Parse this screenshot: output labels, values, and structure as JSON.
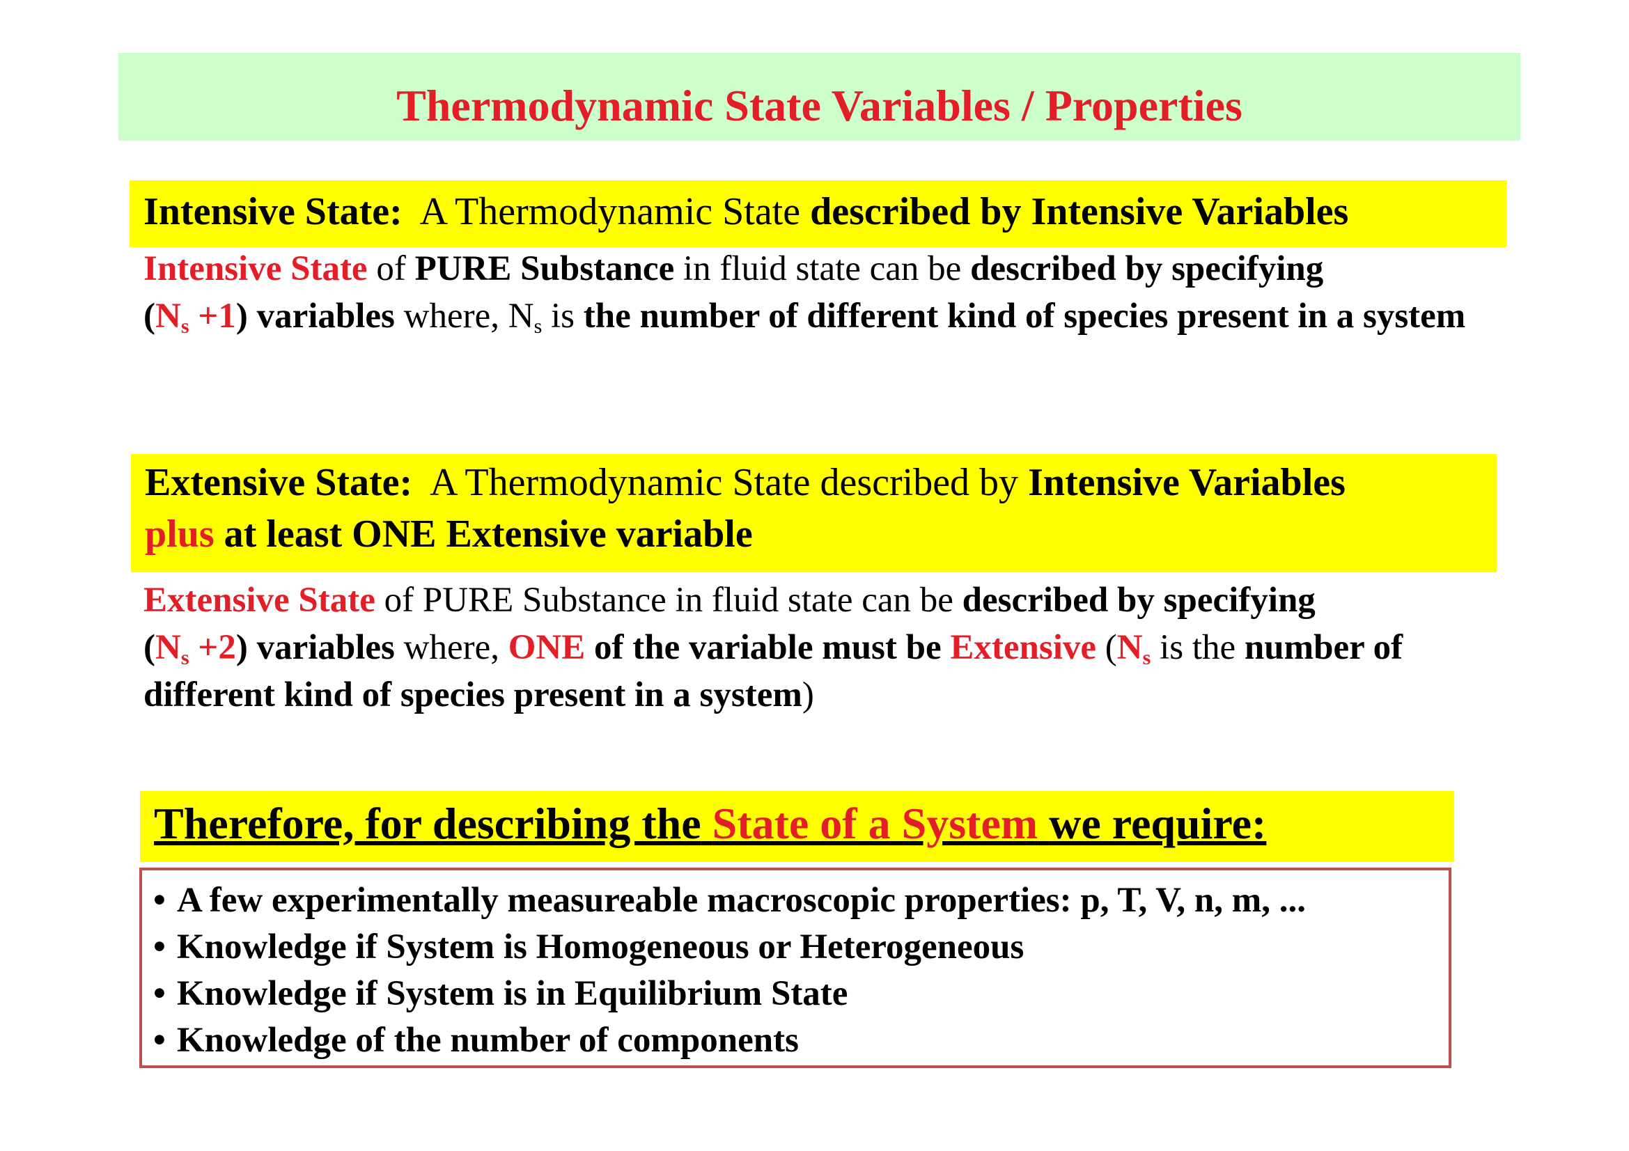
{
  "title": "Thermodynamic State Variables / Properties",
  "intensive": {
    "heading_label": "Intensive State:",
    "heading_normal": "A Thermodynamic State",
    "heading_bold": "described by Intensive Variables",
    "body": {
      "t1": "Intensive State",
      "t2": "of",
      "t3": "PURE Substance",
      "t4": "in fluid state can be",
      "t5": "described by specifying",
      "t6": "(",
      "t7": "N",
      "t7s": "s",
      "t8": "+1",
      "t9": ")",
      "t10": "variables",
      "t11": "where, N",
      "t11s": "s",
      "t12": "is",
      "t13": "the number of different kind of species present in a system"
    }
  },
  "extensive": {
    "heading_label": "Extensive State:",
    "heading_normal": "A Thermodynamic State described by",
    "heading_bold": "Intensive Variables",
    "heading_plus": "plus",
    "heading_rest": "at least ONE Extensive variable",
    "body": {
      "t1": "Extensive State",
      "t2": "of PURE Substance in fluid state can be",
      "t3": "described by specifying",
      "t4": "(",
      "t5": "N",
      "t5s": "s",
      "t6": "+2",
      "t7": ")",
      "t8": "variables",
      "t9": "where,",
      "t10": "ONE",
      "t11": "of the variable must be",
      "t12": "Extensive",
      "t13": "(",
      "t14": "N",
      "t14s": "s",
      "t15": "is the",
      "t16": "number of different kind of species present in a system",
      "t17": ")"
    }
  },
  "therefore": {
    "part1": "Therefore, for describing the",
    "part2": "State of a System",
    "part3": "we require:"
  },
  "requirements": [
    "A few experimentally measureable macroscopic properties: p, T, V, n, m, ...",
    "Knowledge if System is Homogeneous or Heterogeneous",
    "Knowledge if System is in Equilibrium State",
    "Knowledge of the number of components"
  ],
  "bullet": "•",
  "colors": {
    "title_band": "#ccffcc",
    "highlight_band": "#ffff00",
    "accent_red": "#e41e26",
    "box_border": "#c0504d"
  }
}
